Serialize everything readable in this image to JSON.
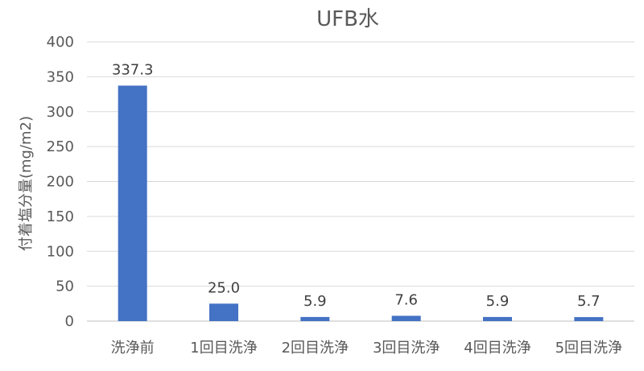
{
  "chart_data": {
    "type": "bar",
    "title": "UFB水",
    "ylabel": "付着塩分量(mg/m2)",
    "xlabel": "",
    "categories": [
      "洗浄前",
      "1回目洗浄",
      "2回目洗浄",
      "3回目洗浄",
      "4回目洗浄",
      "5回目洗浄"
    ],
    "values": [
      337.3,
      25.0,
      5.9,
      7.6,
      5.9,
      5.7
    ],
    "data_labels": [
      "337.3",
      "25.0",
      "5.9",
      "7.6",
      "5.9",
      "5.7"
    ],
    "ylim": [
      0,
      400
    ],
    "yticks": [
      0,
      50,
      100,
      150,
      200,
      250,
      300,
      350,
      400
    ],
    "grid": true,
    "legend": "none",
    "bar_color": "#4472c4"
  }
}
